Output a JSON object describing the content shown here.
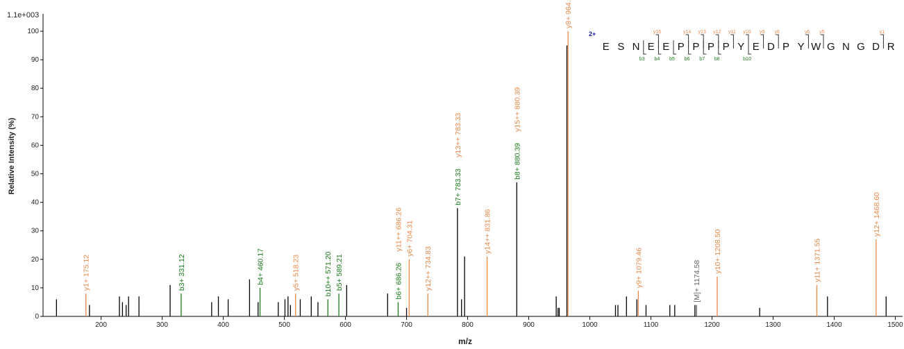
{
  "chart_data": {
    "type": "spectrum",
    "top_label": "1.1e+003",
    "y_label": "Relative  Intensity (%)",
    "x_label": "m/z",
    "xlim": [
      105,
      1512
    ],
    "ylim": [
      0,
      100
    ],
    "xticks": [
      200,
      300,
      400,
      500,
      600,
      700,
      800,
      900,
      1000,
      1100,
      1200,
      1300,
      1400,
      1500
    ],
    "yticks": [
      0,
      10,
      20,
      30,
      40,
      50,
      60,
      70,
      80,
      90,
      100
    ],
    "color": "#000000",
    "x": [
      127,
      181,
      230,
      235,
      241,
      245,
      262,
      313,
      381,
      392,
      408,
      443,
      457,
      490,
      501,
      506,
      510,
      526,
      544,
      555,
      602,
      669,
      700,
      790,
      795,
      945,
      948,
      950,
      962.5,
      1042,
      1046,
      1060,
      1077,
      1092,
      1131,
      1139,
      1172,
      1278,
      1389,
      1485
    ],
    "values": [
      6,
      4,
      7,
      5,
      4,
      7,
      7,
      11,
      5,
      7,
      6,
      13,
      5,
      5,
      6,
      7,
      4,
      6,
      7,
      5,
      11,
      8,
      3,
      6,
      21,
      7,
      3,
      3,
      95,
      4,
      4,
      7,
      6,
      4,
      4,
      4,
      4,
      3,
      7,
      7
    ],
    "annotated_peaks": [
      {
        "x": 175.12,
        "y": 8,
        "color": "#e8894a",
        "labels": [
          {
            "text": "y1+ 175.12",
            "color": "#e8894a"
          }
        ]
      },
      {
        "x": 331.12,
        "y": 8,
        "color": "#1a7a1a",
        "labels": [
          {
            "text": "b3+ 331.12",
            "color": "#1a7a1a"
          }
        ]
      },
      {
        "x": 460.17,
        "y": 10,
        "color": "#1a7a1a",
        "labels": [
          {
            "text": "b4+ 460.17",
            "color": "#1a7a1a"
          }
        ]
      },
      {
        "x": 518.23,
        "y": 8,
        "color": "#e8894a",
        "labels": [
          {
            "text": "y5+ 518.23",
            "color": "#e8894a"
          }
        ]
      },
      {
        "x": 571.2,
        "y": 6,
        "color": "#1a7a1a",
        "labels": [
          {
            "text": "b10++ 571.20",
            "color": "#1a7a1a"
          }
        ]
      },
      {
        "x": 589.21,
        "y": 8,
        "color": "#1a7a1a",
        "labels": [
          {
            "text": "b5+ 589.21",
            "color": "#1a7a1a"
          }
        ]
      },
      {
        "x": 686.26,
        "y": 5,
        "color": "#1a7a1a",
        "labels": [
          {
            "text": "b6+ 686.26",
            "color": "#1a7a1a"
          },
          {
            "text": "y11++ 686.26",
            "color": "#e8894a"
          }
        ]
      },
      {
        "x": 704.31,
        "y": 20,
        "color": "#e8894a",
        "labels": [
          {
            "text": "y6+ 704.31",
            "color": "#e8894a"
          }
        ]
      },
      {
        "x": 734.83,
        "y": 8,
        "color": "#e8894a",
        "labels": [
          {
            "text": "y12++ 734.83",
            "color": "#e8894a"
          }
        ]
      },
      {
        "x": 783.33,
        "y": 38,
        "color": "#000000",
        "labels": [
          {
            "text": "b7+ 783.33",
            "color": "#1a7a1a"
          },
          {
            "text": "y13++ 783.33",
            "color": "#e8894a"
          }
        ]
      },
      {
        "x": 831.86,
        "y": 21,
        "color": "#e8894a",
        "labels": [
          {
            "text": "y14++ 831.86",
            "color": "#e8894a"
          }
        ]
      },
      {
        "x": 880.39,
        "y": 47,
        "color": "#000000",
        "labels": [
          {
            "text": "b8+ 880.39",
            "color": "#1a7a1a"
          },
          {
            "text": "y15++ 880.39",
            "color": "#e8894a"
          }
        ]
      },
      {
        "x": 964.4,
        "y": 100,
        "color": "#e8894a",
        "labels": [
          {
            "text": "y8+ 964.4",
            "color": "#e8894a"
          }
        ]
      },
      {
        "x": 1079.46,
        "y": 9,
        "color": "#e8894a",
        "labels": [
          {
            "text": "y9+ 1079.46",
            "color": "#e8894a"
          }
        ]
      },
      {
        "x": 1174.58,
        "y": 4,
        "color": "#555555",
        "labels": [
          {
            "text": "[M]+ 1174.58",
            "color": "#666666"
          }
        ]
      },
      {
        "x": 1208.5,
        "y": 14,
        "color": "#e8894a",
        "labels": [
          {
            "text": "y10+ 1208.50",
            "color": "#e8894a"
          }
        ]
      },
      {
        "x": 1371.55,
        "y": 11,
        "color": "#e8894a",
        "labels": [
          {
            "text": "y11+ 1371.55",
            "color": "#e8894a"
          }
        ]
      },
      {
        "x": 1468.6,
        "y": 27,
        "color": "#e8894a",
        "labels": [
          {
            "text": "y12+ 1468.60",
            "color": "#e8894a"
          }
        ]
      }
    ],
    "peptide": {
      "charge": "2+",
      "sequence": [
        "E",
        "S",
        "N",
        "E",
        "E",
        "P",
        "P",
        "P",
        "P",
        "Y",
        "E",
        "D",
        "P",
        "Y",
        "W",
        "G",
        "N",
        "G",
        "D",
        "R"
      ],
      "y_ions": [
        "y16",
        "y14",
        "y13",
        "y12",
        "y11",
        "y10",
        "y9",
        "y8",
        "y6",
        "y5",
        "y1"
      ],
      "b_ions": [
        "b3",
        "b4",
        "b5",
        "b6",
        "b7",
        "b8",
        "b10"
      ]
    }
  }
}
